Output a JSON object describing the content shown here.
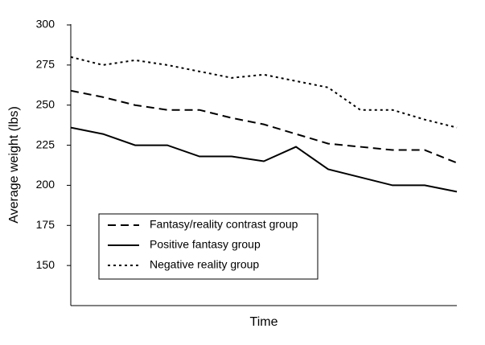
{
  "chart_data": {
    "type": "line",
    "xlabel": "Time",
    "ylabel": "Average weight (lbs)",
    "categories": [
      null,
      null,
      null,
      null,
      null,
      null,
      null,
      null,
      null,
      null,
      null,
      null,
      null
    ],
    "series": [
      {
        "name": "Fantasy/reality contrast group",
        "color": "#000000",
        "style": "dashed",
        "values": [
          259,
          255,
          250,
          247,
          247,
          242,
          238,
          232,
          226,
          224,
          222,
          222,
          214
        ]
      },
      {
        "name": "Positive fantasy group",
        "color": "#000000",
        "style": "solid",
        "values": [
          236,
          232,
          225,
          225,
          218,
          218,
          215,
          224,
          210,
          205,
          200,
          200,
          196
        ]
      },
      {
        "name": "Negative reality group",
        "color": "#000000",
        "style": "dotted",
        "values": [
          280,
          275,
          278,
          275,
          271,
          267,
          269,
          265,
          261,
          247,
          247,
          241,
          236
        ]
      }
    ],
    "ylim": [
      125,
      300
    ],
    "yticks": [
      150,
      175,
      200,
      225,
      250,
      275,
      300
    ],
    "grid": false,
    "legend": "lower left"
  }
}
